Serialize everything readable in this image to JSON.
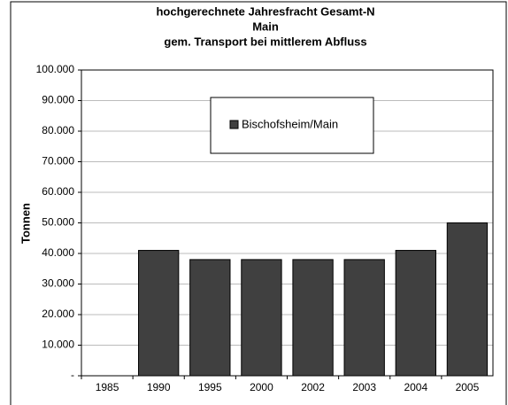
{
  "chart_data": {
    "type": "bar",
    "title": [
      "hochgerechnete Jahresfracht Gesamt-N",
      "Main",
      "gem. Transport bei mittlerem Abfluss"
    ],
    "y_label": "Tonnen",
    "categories": [
      "1985",
      "1990",
      "1995",
      "2000",
      "2002",
      "2003",
      "2004",
      "2005"
    ],
    "series": [
      {
        "name": "Bischofsheim/Main",
        "color": "#404040",
        "values": [
          null,
          41000,
          38000,
          38000,
          38000,
          38000,
          41000,
          50000
        ]
      }
    ],
    "ylim": [
      0,
      100000
    ],
    "yticks": [
      {
        "value": 0,
        "label": "-"
      },
      {
        "value": 10000,
        "label": "10.000"
      },
      {
        "value": 20000,
        "label": "20.000"
      },
      {
        "value": 30000,
        "label": "30.000"
      },
      {
        "value": 40000,
        "label": "40.000"
      },
      {
        "value": 50000,
        "label": "50.000"
      },
      {
        "value": 60000,
        "label": "60.000"
      },
      {
        "value": 70000,
        "label": "70.000"
      },
      {
        "value": 80000,
        "label": "80.000"
      },
      {
        "value": 90000,
        "label": "90.000"
      },
      {
        "value": 100000,
        "label": "100.000"
      }
    ],
    "grid": true
  }
}
